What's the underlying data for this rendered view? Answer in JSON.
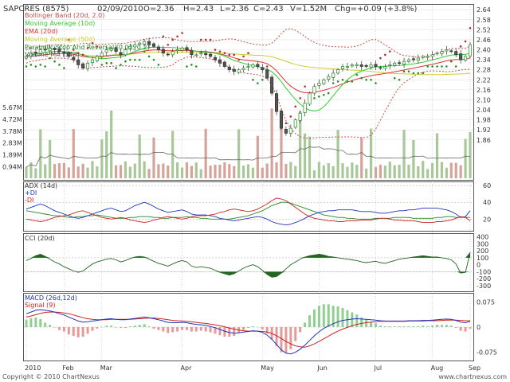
{
  "header": {
    "title": "SAPCRES (8575)",
    "date": "02/09/2010",
    "open": "O=2.36",
    "high": "H=2.43",
    "low": "L=2.36",
    "close": "C=2.43",
    "volume": "V=1.52M",
    "change": "Chg=+0.09 (+3.8%)"
  },
  "legend_main": [
    {
      "label": "Bollinger Band (20d, 2.0)",
      "color": "#c0504d"
    },
    {
      "label": "Moving Average (10d)",
      "color": "#33cc33"
    },
    {
      "label": "EMA (20d)",
      "color": "#dd3333"
    },
    {
      "label": "Moving Average (50d)",
      "color": "#cccc33"
    },
    {
      "label": "Parabolic Stop And Reversal (0.02, 0.2)",
      "color": "#228822"
    },
    {
      "label": "Volume MA (14d)",
      "color": "#555555"
    }
  ],
  "legend_adx": [
    {
      "label": "ADX (14d)",
      "color": "#333333"
    },
    {
      "label": "+DI",
      "color": "#2233bb"
    },
    {
      "label": "-DI",
      "color": "#cc2222"
    }
  ],
  "legend_cci": [
    {
      "label": "CCI (20d)",
      "color": "#333333"
    }
  ],
  "legend_macd": [
    {
      "label": "MACD (26d,12d)",
      "color": "#2233bb"
    },
    {
      "label": "Signal (9)",
      "color": "#cc2222"
    }
  ],
  "footer": {
    "copyright": "Copyright © 2010 ChartNexus",
    "url": "www.chartnexus.com"
  },
  "colors": {
    "up_candle": "#228822",
    "down_candle": "#555555",
    "volume_up": "#a8c89a",
    "volume_down": "#d4a49a",
    "sar": "#2a8a2a",
    "cci_fill": "#226622",
    "macd_line": "#2233bb",
    "signal_line": "#cc2222"
  },
  "chart_data": [
    {
      "type": "candlestick",
      "title": "SAPCRES (8575)",
      "x_labels": [
        "2010",
        "Feb",
        "Mar",
        "Apr",
        "May",
        "Jun",
        "Jul",
        "Aug",
        "Sep"
      ],
      "y_ticks": [
        "2.64",
        "2.58",
        "2.52",
        "2.46",
        "2.40",
        "2.34",
        "2.28",
        "2.22",
        "2.16",
        "2.10",
        "2.04",
        "1.98",
        "1.92",
        "1.86"
      ],
      "ylim": [
        1.84,
        2.66
      ],
      "close": [
        2.36,
        2.38,
        2.38,
        2.4,
        2.4,
        2.41,
        2.4,
        2.39,
        2.38,
        2.36,
        2.34,
        2.31,
        2.29,
        2.32,
        2.34,
        2.36,
        2.38,
        2.4,
        2.41,
        2.39,
        2.37,
        2.4,
        2.42,
        2.43,
        2.44,
        2.45,
        2.43,
        2.42,
        2.4,
        2.38,
        2.37,
        2.39,
        2.4,
        2.41,
        2.4,
        2.37,
        2.37,
        2.38,
        2.37,
        2.36,
        2.34,
        2.32,
        2.3,
        2.28,
        2.27,
        2.28,
        2.29,
        2.3,
        2.31,
        2.3,
        2.28,
        2.23,
        2.14,
        2.03,
        1.93,
        1.9,
        1.93,
        1.98,
        2.02,
        2.08,
        2.14,
        2.18,
        2.2,
        2.22,
        2.24,
        2.26,
        2.28,
        2.3,
        2.3,
        2.31,
        2.31,
        2.3,
        2.3,
        2.31,
        2.3,
        2.29,
        2.3,
        2.31,
        2.32,
        2.32,
        2.33,
        2.34,
        2.34,
        2.35,
        2.36,
        2.36,
        2.37,
        2.38,
        2.39,
        2.4,
        2.39,
        2.37,
        2.34,
        2.36,
        2.43
      ],
      "volume_ticks": [
        "5.67M",
        "4.72M",
        "3.78M",
        "2.83M",
        "1.89M",
        "0.94M"
      ],
      "volume_max_m": 6.0
    },
    {
      "type": "line",
      "title": "ADX (14d)",
      "y_ticks": [
        "60",
        "40",
        "20"
      ],
      "ylim": [
        8,
        62
      ],
      "series": [
        {
          "name": "ADX (14d)",
          "values": [
            30,
            29,
            28,
            27,
            26,
            25,
            24,
            24,
            23,
            22,
            22,
            23,
            23,
            24,
            24,
            25,
            24,
            23,
            22,
            21,
            21,
            21,
            22,
            22,
            23,
            23,
            23,
            22,
            22,
            21,
            21,
            22,
            22,
            22,
            23,
            22,
            22,
            21,
            21,
            20,
            20,
            20,
            20,
            20,
            21,
            22,
            23,
            24,
            26,
            28,
            30,
            33,
            36,
            38,
            40,
            40,
            39,
            37,
            35,
            33,
            31,
            29,
            27,
            25,
            24,
            23,
            22,
            22,
            21,
            21,
            20,
            20,
            20,
            20,
            21,
            21,
            21,
            21,
            22,
            22,
            22,
            22,
            21,
            21,
            21,
            21,
            21,
            22,
            22,
            23,
            23,
            22,
            22,
            22,
            22
          ]
        },
        {
          "name": "+DI",
          "values": [
            32,
            34,
            36,
            38,
            36,
            33,
            30,
            28,
            26,
            24,
            22,
            21,
            22,
            24,
            26,
            28,
            30,
            32,
            33,
            31,
            29,
            30,
            33,
            36,
            38,
            40,
            38,
            35,
            32,
            30,
            28,
            29,
            30,
            31,
            29,
            26,
            25,
            25,
            25,
            24,
            23,
            21,
            20,
            19,
            18,
            19,
            20,
            21,
            22,
            23,
            22,
            20,
            17,
            15,
            14,
            13,
            14,
            16,
            18,
            21,
            24,
            26,
            28,
            29,
            30,
            30,
            31,
            31,
            31,
            31,
            30,
            29,
            29,
            29,
            28,
            27,
            27,
            28,
            29,
            30,
            30,
            31,
            31,
            32,
            33,
            33,
            33,
            33,
            32,
            31,
            29,
            26,
            22,
            23,
            30
          ]
        },
        {
          "name": "-DI",
          "values": [
            20,
            19,
            18,
            17,
            18,
            20,
            22,
            23,
            24,
            25,
            27,
            29,
            30,
            28,
            26,
            24,
            22,
            21,
            20,
            21,
            22,
            21,
            19,
            18,
            17,
            16,
            17,
            19,
            20,
            22,
            23,
            22,
            21,
            20,
            21,
            23,
            24,
            24,
            24,
            25,
            26,
            28,
            29,
            31,
            32,
            31,
            30,
            29,
            30,
            32,
            35,
            38,
            42,
            45,
            44,
            42,
            38,
            34,
            30,
            26,
            23,
            21,
            20,
            19,
            18,
            18,
            17,
            17,
            18,
            18,
            18,
            19,
            19,
            19,
            20,
            21,
            21,
            20,
            19,
            19,
            18,
            18,
            18,
            17,
            16,
            16,
            16,
            17,
            17,
            18,
            19,
            21,
            23,
            22,
            18
          ]
        }
      ]
    },
    {
      "type": "area",
      "title": "CCI (20d)",
      "y_ticks": [
        "400",
        "300",
        "200",
        "100",
        "0",
        "-100",
        "-200",
        "-300"
      ],
      "ylim": [
        -360,
        420
      ],
      "series": [
        {
          "name": "CCI (20d)",
          "values": [
            60,
            90,
            130,
            150,
            120,
            80,
            40,
            10,
            -30,
            -60,
            -90,
            -110,
            -90,
            -40,
            10,
            40,
            60,
            80,
            90,
            70,
            40,
            60,
            90,
            110,
            120,
            110,
            80,
            50,
            20,
            0,
            -20,
            10,
            40,
            60,
            40,
            -20,
            -40,
            -30,
            -40,
            -50,
            -80,
            -110,
            -130,
            -150,
            -130,
            -90,
            -50,
            -20,
            0,
            -30,
            -80,
            -140,
            -180,
            -170,
            -120,
            -60,
            0,
            40,
            80,
            110,
            130,
            140,
            150,
            140,
            120,
            110,
            100,
            90,
            80,
            70,
            60,
            40,
            30,
            40,
            50,
            30,
            20,
            40,
            60,
            80,
            90,
            100,
            110,
            120,
            130,
            120,
            110,
            110,
            100,
            90,
            70,
            10,
            -120,
            -110,
            180
          ]
        }
      ]
    },
    {
      "type": "bar",
      "title": "MACD (26d,12d)",
      "y_ticks": [
        "0.075",
        "0",
        "-0.075"
      ],
      "ylim": [
        -0.095,
        0.095
      ],
      "series": [
        {
          "name": "MACD (26d,12d)",
          "values": [
            0.04,
            0.045,
            0.05,
            0.052,
            0.05,
            0.048,
            0.045,
            0.04,
            0.036,
            0.03,
            0.024,
            0.018,
            0.015,
            0.016,
            0.018,
            0.02,
            0.022,
            0.024,
            0.025,
            0.023,
            0.022,
            0.022,
            0.024,
            0.026,
            0.028,
            0.03,
            0.028,
            0.025,
            0.022,
            0.018,
            0.014,
            0.013,
            0.013,
            0.014,
            0.013,
            0.01,
            0.008,
            0.007,
            0.005,
            0.002,
            -0.002,
            -0.007,
            -0.012,
            -0.016,
            -0.018,
            -0.017,
            -0.015,
            -0.013,
            -0.011,
            -0.012,
            -0.016,
            -0.024,
            -0.036,
            -0.052,
            -0.068,
            -0.078,
            -0.08,
            -0.075,
            -0.066,
            -0.054,
            -0.04,
            -0.026,
            -0.014,
            -0.004,
            0.004,
            0.01,
            0.016,
            0.02,
            0.022,
            0.024,
            0.025,
            0.024,
            0.023,
            0.022,
            0.021,
            0.019,
            0.018,
            0.018,
            0.018,
            0.018,
            0.018,
            0.019,
            0.019,
            0.019,
            0.02,
            0.02,
            0.021,
            0.022,
            0.023,
            0.024,
            0.023,
            0.02,
            0.015,
            0.013,
            0.017
          ]
        },
        {
          "name": "Signal (9)",
          "values": [
            0.03,
            0.033,
            0.037,
            0.041,
            0.044,
            0.045,
            0.045,
            0.044,
            0.042,
            0.04,
            0.036,
            0.032,
            0.028,
            0.025,
            0.023,
            0.022,
            0.022,
            0.022,
            0.023,
            0.023,
            0.023,
            0.023,
            0.023,
            0.024,
            0.025,
            0.026,
            0.027,
            0.027,
            0.026,
            0.024,
            0.022,
            0.02,
            0.019,
            0.018,
            0.017,
            0.016,
            0.014,
            0.012,
            0.011,
            0.009,
            0.007,
            0.004,
            0.001,
            -0.003,
            -0.006,
            -0.009,
            -0.011,
            -0.012,
            -0.012,
            -0.012,
            -0.013,
            -0.015,
            -0.019,
            -0.026,
            -0.034,
            -0.043,
            -0.05,
            -0.056,
            -0.059,
            -0.06,
            -0.056,
            -0.05,
            -0.043,
            -0.035,
            -0.027,
            -0.019,
            -0.012,
            -0.006,
            -0.001,
            0.004,
            0.008,
            0.011,
            0.013,
            0.015,
            0.016,
            0.017,
            0.017,
            0.017,
            0.017,
            0.017,
            0.017,
            0.018,
            0.018,
            0.018,
            0.018,
            0.019,
            0.019,
            0.019,
            0.02,
            0.021,
            0.021,
            0.021,
            0.02,
            0.019,
            0.019
          ]
        }
      ]
    }
  ]
}
